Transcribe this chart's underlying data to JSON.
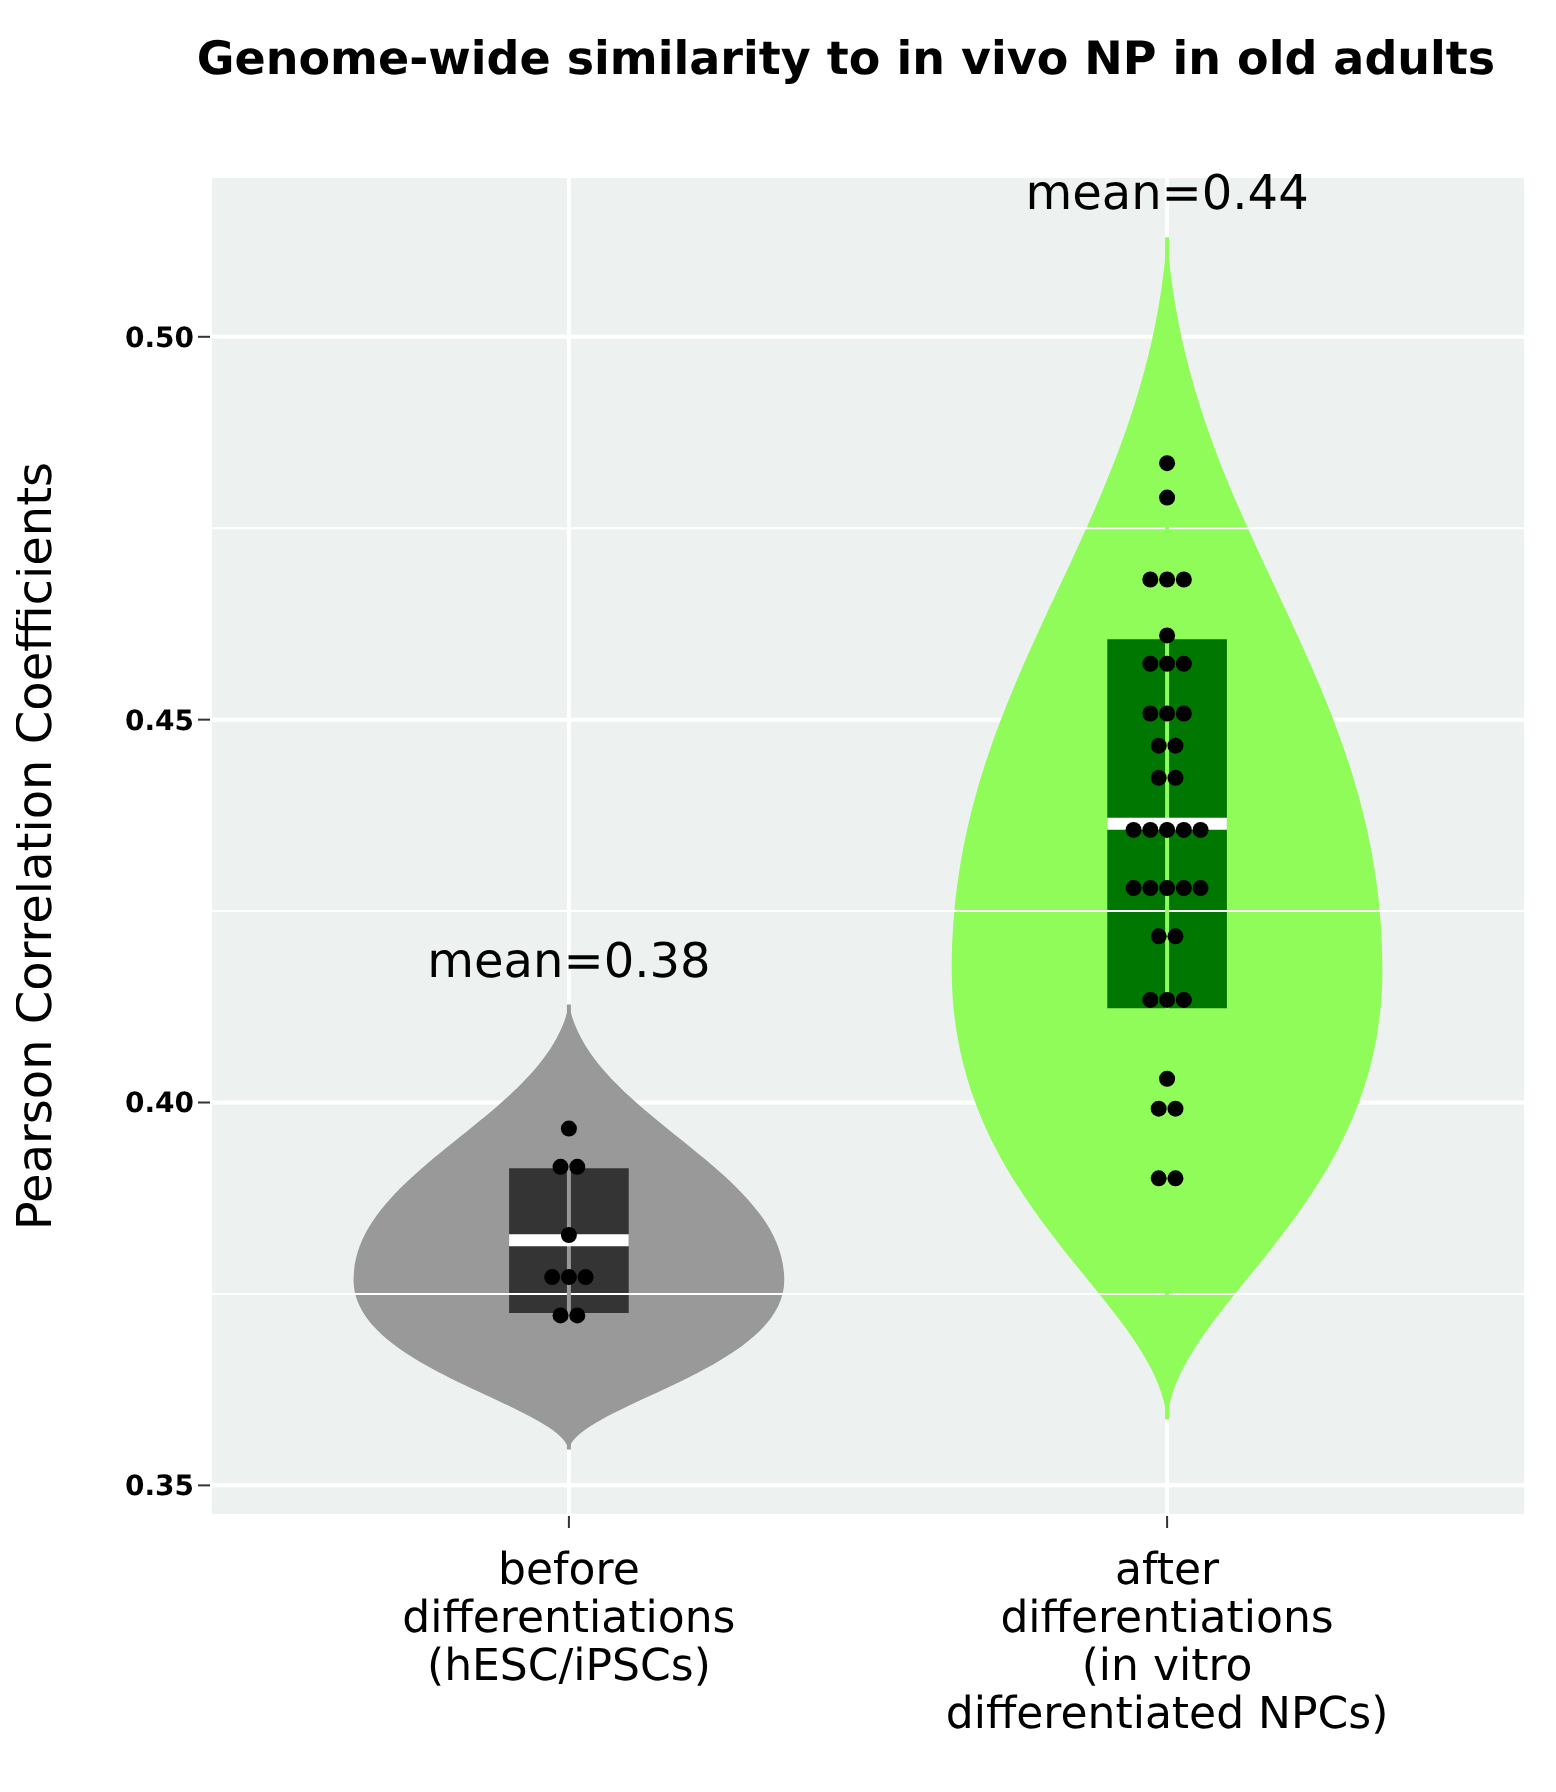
{
  "chart_data": {
    "type": "box",
    "title": "Genome-wide similarity to in vivo NP in old adults",
    "ylabel": "Pearson Correlation Coefficients",
    "categories": [
      "before\ndifferentiations\n(hESC/iPSCs)",
      "after\ndifferentiations\n(in vitro\ndifferentiated NPCs)"
    ],
    "colors": [
      "#343434",
      "#007700"
    ],
    "boxes": [
      {
        "low": 0.3547,
        "q1": 0.3725,
        "median": 0.382,
        "q3": 0.3914,
        "high": 0.4128
      },
      {
        "low": 0.3586,
        "q1": 0.4123,
        "median": 0.4364,
        "q3": 0.4605,
        "high": 0.513
      }
    ],
    "series": [
      {
        "type": "scatter",
        "color": "#000000",
        "x": [
          "before\ndifferentiations\n(hESC/iPSCs)",
          "before\ndifferentiations\n(hESC/iPSCs)",
          "before\ndifferentiations\n(hESC/iPSCs)",
          "before\ndifferentiations\n(hESC/iPSCs)",
          "before\ndifferentiations\n(hESC/iPSCs)",
          "before\ndifferentiations\n(hESC/iPSCs)",
          "before\ndifferentiations\n(hESC/iPSCs)",
          "before\ndifferentiations\n(hESC/iPSCs)",
          "before\ndifferentiations\n(hESC/iPSCs)"
        ],
        "values": [
          0.3966,
          0.3916,
          0.3916,
          0.3827,
          0.3772,
          0.3772,
          0.3772,
          0.3722,
          0.3722
        ]
      },
      {
        "type": "scatter",
        "color": "#000000",
        "x": [
          "after\ndifferentiations\n(in vitro\ndifferentiated NPCs)",
          "after\ndifferentiations\n(in vitro\ndifferentiated NPCs)",
          "after\ndifferentiations\n(in vitro\ndifferentiated NPCs)",
          "after\ndifferentiations\n(in vitro\ndifferentiated NPCs)",
          "after\ndifferentiations\n(in vitro\ndifferentiated NPCs)",
          "after\ndifferentiations\n(in vitro\ndifferentiated NPCs)",
          "after\ndifferentiations\n(in vitro\ndifferentiated NPCs)",
          "after\ndifferentiations\n(in vitro\ndifferentiated NPCs)",
          "after\ndifferentiations\n(in vitro\ndifferentiated NPCs)",
          "after\ndifferentiations\n(in vitro\ndifferentiated NPCs)",
          "after\ndifferentiations\n(in vitro\ndifferentiated NPCs)",
          "after\ndifferentiations\n(in vitro\ndifferentiated NPCs)",
          "after\ndifferentiations\n(in vitro\ndifferentiated NPCs)",
          "after\ndifferentiations\n(in vitro\ndifferentiated NPCs)",
          "after\ndifferentiations\n(in vitro\ndifferentiated NPCs)",
          "after\ndifferentiations\n(in vitro\ndifferentiated NPCs)",
          "after\ndifferentiations\n(in vitro\ndifferentiated NPCs)",
          "after\ndifferentiations\n(in vitro\ndifferentiated NPCs)",
          "after\ndifferentiations\n(in vitro\ndifferentiated NPCs)",
          "after\ndifferentiations\n(in vitro\ndifferentiated NPCs)",
          "after\ndifferentiations\n(in vitro\ndifferentiated NPCs)",
          "after\ndifferentiations\n(in vitro\ndifferentiated NPCs)",
          "after\ndifferentiations\n(in vitro\ndifferentiated NPCs)",
          "after\ndifferentiations\n(in vitro\ndifferentiated NPCs)",
          "after\ndifferentiations\n(in vitro\ndifferentiated NPCs)",
          "after\ndifferentiations\n(in vitro\ndifferentiated NPCs)",
          "after\ndifferentiations\n(in vitro\ndifferentiated NPCs)",
          "after\ndifferentiations\n(in vitro\ndifferentiated NPCs)",
          "after\ndifferentiations\n(in vitro\ndifferentiated NPCs)",
          "after\ndifferentiations\n(in vitro\ndifferentiated NPCs)",
          "after\ndifferentiations\n(in vitro\ndifferentiated NPCs)",
          "after\ndifferentiations\n(in vitro\ndifferentiated NPCs)",
          "after\ndifferentiations\n(in vitro\ndifferentiated NPCs)",
          "after\ndifferentiations\n(in vitro\ndifferentiated NPCs)",
          "after\ndifferentiations\n(in vitro\ndifferentiated NPCs)",
          "after\ndifferentiations\n(in vitro\ndifferentiated NPCs)"
        ],
        "values": [
          0.4835,
          0.479,
          0.4683,
          0.4683,
          0.4683,
          0.461,
          0.4573,
          0.4573,
          0.4573,
          0.4508,
          0.4508,
          0.4508,
          0.4466,
          0.4466,
          0.4424,
          0.4424,
          0.4356,
          0.4356,
          0.4356,
          0.4356,
          0.4356,
          0.428,
          0.428,
          0.428,
          0.428,
          0.428,
          0.4217,
          0.4217,
          0.4134,
          0.4134,
          0.4134,
          0.4031,
          0.3992,
          0.3992,
          0.3901,
          0.3901
        ]
      }
    ],
    "annotations": [
      "mean=0.38",
      "mean=0.44"
    ],
    "ylim": [
      0.346,
      0.521
    ],
    "yticks": [
      {
        "value": 0.35,
        "label": "0.35"
      },
      {
        "value": 0.4,
        "label": "0.40"
      },
      {
        "value": 0.45,
        "label": "0.45"
      },
      {
        "value": 0.5,
        "label": "0.50"
      }
    ],
    "grid": true,
    "marker": "circle"
  }
}
